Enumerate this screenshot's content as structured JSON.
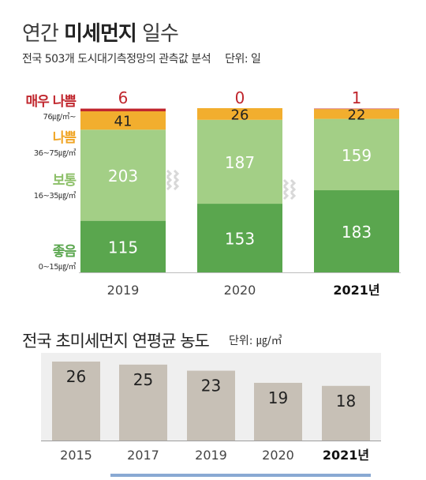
{
  "header": {
    "title_light_1": "연간 ",
    "title_bold": "미세먼지",
    "title_light_2": " 일수",
    "subtitle": "전국 503개 도시대기측정망의 관측값 분석",
    "unit": "단위: 일"
  },
  "legend": [
    {
      "label": "매우 나쁨",
      "range": "76㎍/㎥~",
      "color": "#c0262d"
    },
    {
      "label": "나쁨",
      "range": "36~75㎍/㎥",
      "color": "#f0a525"
    },
    {
      "label": "보통",
      "range": "16~35㎍/㎥",
      "color": "#9bc97a"
    },
    {
      "label": "좋음",
      "range": "0~15㎍/㎥",
      "color": "#5aa64e"
    }
  ],
  "section2": {
    "title": "전국 초미세먼지 연평균 농도",
    "unit": "단위: ㎍/㎥"
  },
  "chart_data": [
    {
      "type": "bar",
      "stacked": true,
      "title": "연간 미세먼지 일수",
      "categories": [
        "2019",
        "2020",
        "2021년"
      ],
      "series": [
        {
          "name": "좋음",
          "values": [
            115,
            153,
            183
          ],
          "color": "#5aa64e"
        },
        {
          "name": "보통",
          "values": [
            203,
            187,
            159
          ],
          "color": "#a3cf86"
        },
        {
          "name": "나쁨",
          "values": [
            41,
            26,
            22
          ],
          "color": "#f2ae2e"
        },
        {
          "name": "매우 나쁨",
          "values": [
            6,
            0,
            1
          ],
          "color": "#c0262d"
        }
      ]
    },
    {
      "type": "bar",
      "title": "전국 초미세먼지 연평균 농도",
      "categories": [
        "2015",
        "2017",
        "2019",
        "2020",
        "2021년"
      ],
      "values": [
        26,
        25,
        23,
        19,
        18
      ],
      "color": "#c7c0b6"
    }
  ]
}
